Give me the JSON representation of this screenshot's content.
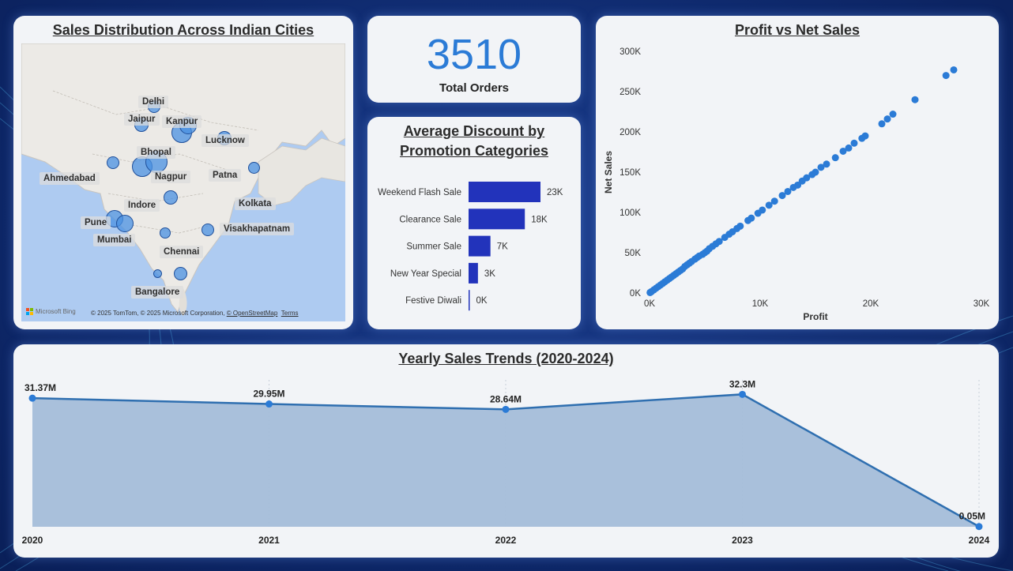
{
  "map": {
    "title": "Sales Distribution Across Indian Cities",
    "cities": [
      "Delhi",
      "Jaipur",
      "Kanpur",
      "Lucknow",
      "Bhopal",
      "Ahmedabad",
      "Nagpur",
      "Patna",
      "Indore",
      "Kolkata",
      "Pune",
      "Mumbai",
      "Visakhapatnam",
      "Chennai",
      "Bangalore"
    ],
    "bing_label": "Microsoft Bing",
    "attribution": "© 2025 TomTom, © 2025 Microsoft Corporation,",
    "osm_link": "© OpenStreetMap",
    "terms_link": "Terms"
  },
  "kpi": {
    "value": "3510",
    "label": "Total Orders"
  },
  "chart_data": [
    {
      "type": "bar",
      "title": "Average Discount by Promotion Categories",
      "orientation": "horizontal",
      "categories": [
        "Weekend Flash Sale",
        "Clearance Sale",
        "Summer Sale",
        "New Year Special",
        "Festive Diwali"
      ],
      "values": [
        23000,
        18000,
        7000,
        3000,
        200
      ],
      "data_labels": [
        "23K",
        "18K",
        "7K",
        "3K",
        "0K"
      ],
      "color": "#2233bb"
    },
    {
      "type": "scatter",
      "title": "Profit vs Net Sales",
      "xlabel": "Profit",
      "ylabel": "Net Sales",
      "xlim": [
        0,
        30000
      ],
      "ylim": [
        0,
        300000
      ],
      "x_ticks": [
        "0K",
        "10K",
        "20K",
        "30K"
      ],
      "y_ticks": [
        "0K",
        "50K",
        "100K",
        "150K",
        "200K",
        "250K",
        "300K"
      ],
      "color": "#2b7bd6",
      "points": [
        [
          27500,
          277000
        ],
        [
          26800,
          270000
        ],
        [
          24000,
          240000
        ],
        [
          22000,
          222000
        ],
        [
          21500,
          216000
        ],
        [
          21000,
          210000
        ],
        [
          19500,
          195000
        ],
        [
          19200,
          192000
        ],
        [
          18500,
          186000
        ],
        [
          18000,
          180000
        ],
        [
          17500,
          176000
        ],
        [
          16800,
          168000
        ],
        [
          16000,
          160000
        ],
        [
          15500,
          156000
        ],
        [
          15000,
          150000
        ],
        [
          14700,
          147000
        ],
        [
          14200,
          143000
        ],
        [
          13800,
          139000
        ],
        [
          13400,
          134000
        ],
        [
          13000,
          131000
        ],
        [
          12500,
          126000
        ],
        [
          12000,
          121000
        ],
        [
          11300,
          114000
        ],
        [
          10800,
          109000
        ],
        [
          10200,
          103000
        ],
        [
          9800,
          99000
        ],
        [
          9200,
          93000
        ],
        [
          8900,
          90000
        ],
        [
          8200,
          83000
        ],
        [
          7900,
          80000
        ],
        [
          7500,
          76000
        ],
        [
          7200,
          73000
        ],
        [
          6800,
          69000
        ],
        [
          6300,
          64000
        ],
        [
          6000,
          61000
        ],
        [
          5700,
          58000
        ],
        [
          5400,
          55000
        ],
        [
          5200,
          52000
        ],
        [
          5000,
          50000
        ],
        [
          4800,
          48000
        ],
        [
          4500,
          46000
        ],
        [
          4300,
          44000
        ],
        [
          4100,
          42000
        ],
        [
          3800,
          39000
        ],
        [
          3600,
          37000
        ],
        [
          3400,
          35000
        ],
        [
          3200,
          33000
        ],
        [
          3000,
          30000
        ],
        [
          2800,
          28000
        ],
        [
          2600,
          26000
        ],
        [
          2400,
          24000
        ],
        [
          2200,
          22000
        ],
        [
          2000,
          20000
        ],
        [
          1800,
          18000
        ],
        [
          1600,
          16000
        ],
        [
          1400,
          14000
        ],
        [
          1200,
          12000
        ],
        [
          1000,
          10000
        ],
        [
          800,
          8000
        ],
        [
          600,
          6000
        ],
        [
          400,
          4000
        ],
        [
          200,
          2000
        ],
        [
          100,
          1000
        ],
        [
          50,
          500
        ]
      ]
    },
    {
      "type": "area",
      "title": "Yearly Sales Trends (2020-2024)",
      "categories": [
        "2020",
        "2021",
        "2022",
        "2023",
        "2024"
      ],
      "values": [
        31.37,
        29.95,
        28.64,
        32.3,
        0.05
      ],
      "data_labels": [
        "31.37M",
        "29.95M",
        "28.64M",
        "32.3M",
        "0.05M"
      ],
      "line_color": "#2f6fb0",
      "fill_color": "#a4bdd9"
    }
  ]
}
